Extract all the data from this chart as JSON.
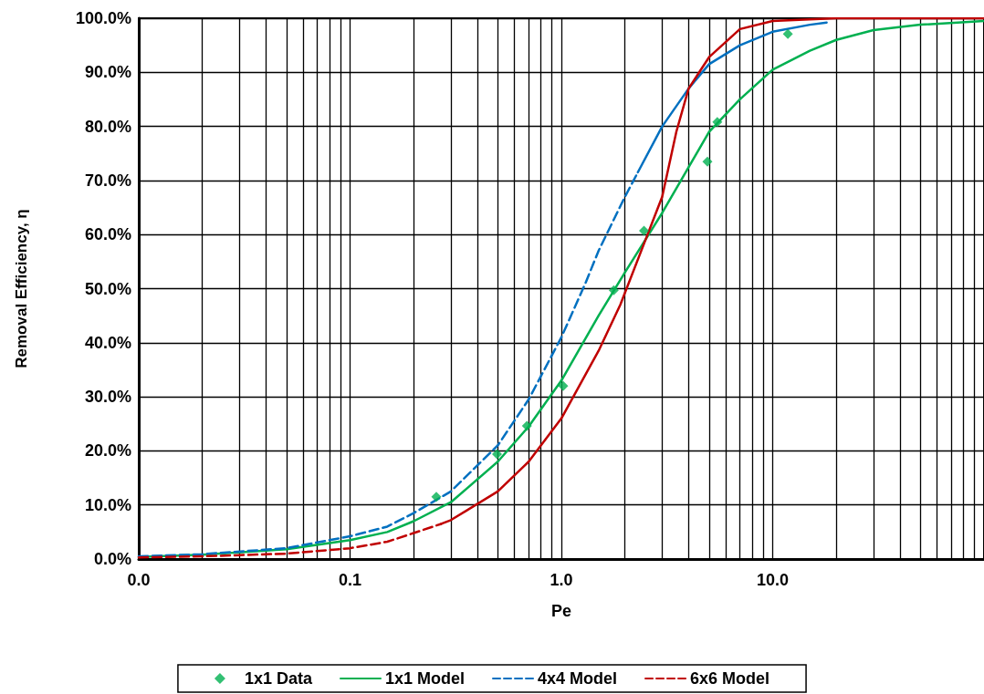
{
  "chart_data": {
    "type": "line",
    "xlabel": "Pe",
    "ylabel": "Removal Efficiency, η",
    "log": "x",
    "grid": true,
    "legend": "bottom",
    "xlim": [
      0.01,
      100
    ],
    "ylim": [
      0,
      100
    ],
    "xticks": [
      {
        "value": 0.01,
        "label": "0.0"
      },
      {
        "value": 0.02,
        "label": null
      },
      {
        "value": 0.03,
        "label": null
      },
      {
        "value": 0.04,
        "label": null
      },
      {
        "value": 0.05,
        "label": null
      },
      {
        "value": 0.06,
        "label": null
      },
      {
        "value": 0.07,
        "label": null
      },
      {
        "value": 0.08,
        "label": null
      },
      {
        "value": 0.09,
        "label": null
      },
      {
        "value": 0.1,
        "label": "0.1"
      },
      {
        "value": 0.2,
        "label": null
      },
      {
        "value": 0.3,
        "label": null
      },
      {
        "value": 0.4,
        "label": null
      },
      {
        "value": 0.5,
        "label": null
      },
      {
        "value": 0.6,
        "label": null
      },
      {
        "value": 0.7,
        "label": null
      },
      {
        "value": 0.8,
        "label": null
      },
      {
        "value": 0.9,
        "label": null
      },
      {
        "value": 1,
        "label": "1.0"
      },
      {
        "value": 2,
        "label": null
      },
      {
        "value": 3,
        "label": null
      },
      {
        "value": 4,
        "label": null
      },
      {
        "value": 5,
        "label": null
      },
      {
        "value": 6,
        "label": null
      },
      {
        "value": 7,
        "label": null
      },
      {
        "value": 8,
        "label": null
      },
      {
        "value": 9,
        "label": null
      },
      {
        "value": 10,
        "label": "10.0"
      },
      {
        "value": 20,
        "label": null
      },
      {
        "value": 30,
        "label": null
      },
      {
        "value": 40,
        "label": null
      },
      {
        "value": 50,
        "label": null
      },
      {
        "value": 60,
        "label": null
      },
      {
        "value": 70,
        "label": null
      },
      {
        "value": 80,
        "label": null
      },
      {
        "value": 90,
        "label": null
      }
    ],
    "yticks": [
      {
        "value": 0,
        "label": "0.0%"
      },
      {
        "value": 10,
        "label": "10.0%"
      },
      {
        "value": 20,
        "label": "20.0%"
      },
      {
        "value": 30,
        "label": "30.0%"
      },
      {
        "value": 40,
        "label": "40.0%"
      },
      {
        "value": 50,
        "label": "50.0%"
      },
      {
        "value": 60,
        "label": "60.0%"
      },
      {
        "value": 70,
        "label": "70.0%"
      },
      {
        "value": 80,
        "label": "80.0%"
      },
      {
        "value": 90,
        "label": "90.0%"
      },
      {
        "value": 100,
        "label": "100.0%"
      }
    ],
    "series": [
      {
        "name": "1x1 Data",
        "type": "scatter",
        "marker": "diamond",
        "color": "#00b050",
        "x": [
          0.256,
          0.496,
          0.687,
          1.02,
          1.77,
          2.46,
          4.91,
          5.47,
          11.8
        ],
        "values": [
          11.5,
          19.4,
          24.6,
          32.0,
          49.7,
          60.7,
          73.5,
          80.8,
          97.1
        ]
      },
      {
        "name": "1x1 Model",
        "line_style": "solid",
        "color": "#00b050",
        "x": [
          0.01,
          0.02,
          0.05,
          0.1,
          0.15,
          0.2,
          0.3,
          0.5,
          0.7,
          1,
          1.5,
          2,
          3,
          5,
          7,
          10,
          15,
          20,
          30,
          50,
          100
        ],
        "values": [
          0.4,
          0.8,
          1.8,
          3.5,
          5,
          7,
          10.5,
          18,
          24.5,
          33,
          45,
          53,
          64,
          79,
          85,
          90.5,
          94,
          96,
          97.8,
          98.8,
          99.5
        ]
      },
      {
        "name": "4x4 Model",
        "line_style": "dashed",
        "color": "#0070c0",
        "x": [
          0.01,
          0.02,
          0.05,
          0.1,
          0.15,
          0.2,
          0.3,
          0.5,
          0.7,
          1,
          1.3,
          1.5,
          2,
          2.3
        ],
        "values": [
          0.5,
          0.9,
          2,
          4.2,
          6,
          8.5,
          12.5,
          21,
          29.5,
          41,
          51,
          57,
          67,
          71.5
        ]
      },
      {
        "line_style": "solid",
        "color": "#0070c0",
        "x": [
          2.3,
          3,
          4,
          5,
          7,
          10,
          15,
          18
        ],
        "values": [
          71.5,
          80,
          87,
          91.5,
          95,
          97.5,
          98.8,
          99.2
        ]
      },
      {
        "name": "6x6 Model",
        "line_style": "dashed",
        "color": "#c00000",
        "x": [
          0.01,
          0.02,
          0.05,
          0.1,
          0.15,
          0.2,
          0.27
        ],
        "values": [
          0.3,
          0.5,
          1,
          2,
          3.2,
          4.8,
          6.5
        ]
      },
      {
        "line_style": "solid",
        "color": "#c00000",
        "x": [
          0.27,
          0.3,
          0.5,
          0.7,
          1,
          1.5,
          1.9,
          2.5,
          3,
          3.5,
          4,
          5,
          7,
          10,
          20,
          100
        ],
        "values": [
          6.5,
          7.2,
          12.5,
          18,
          26,
          38.5,
          47,
          59,
          67,
          79,
          87,
          92.8,
          98,
          99.5,
          100,
          100
        ]
      }
    ]
  }
}
